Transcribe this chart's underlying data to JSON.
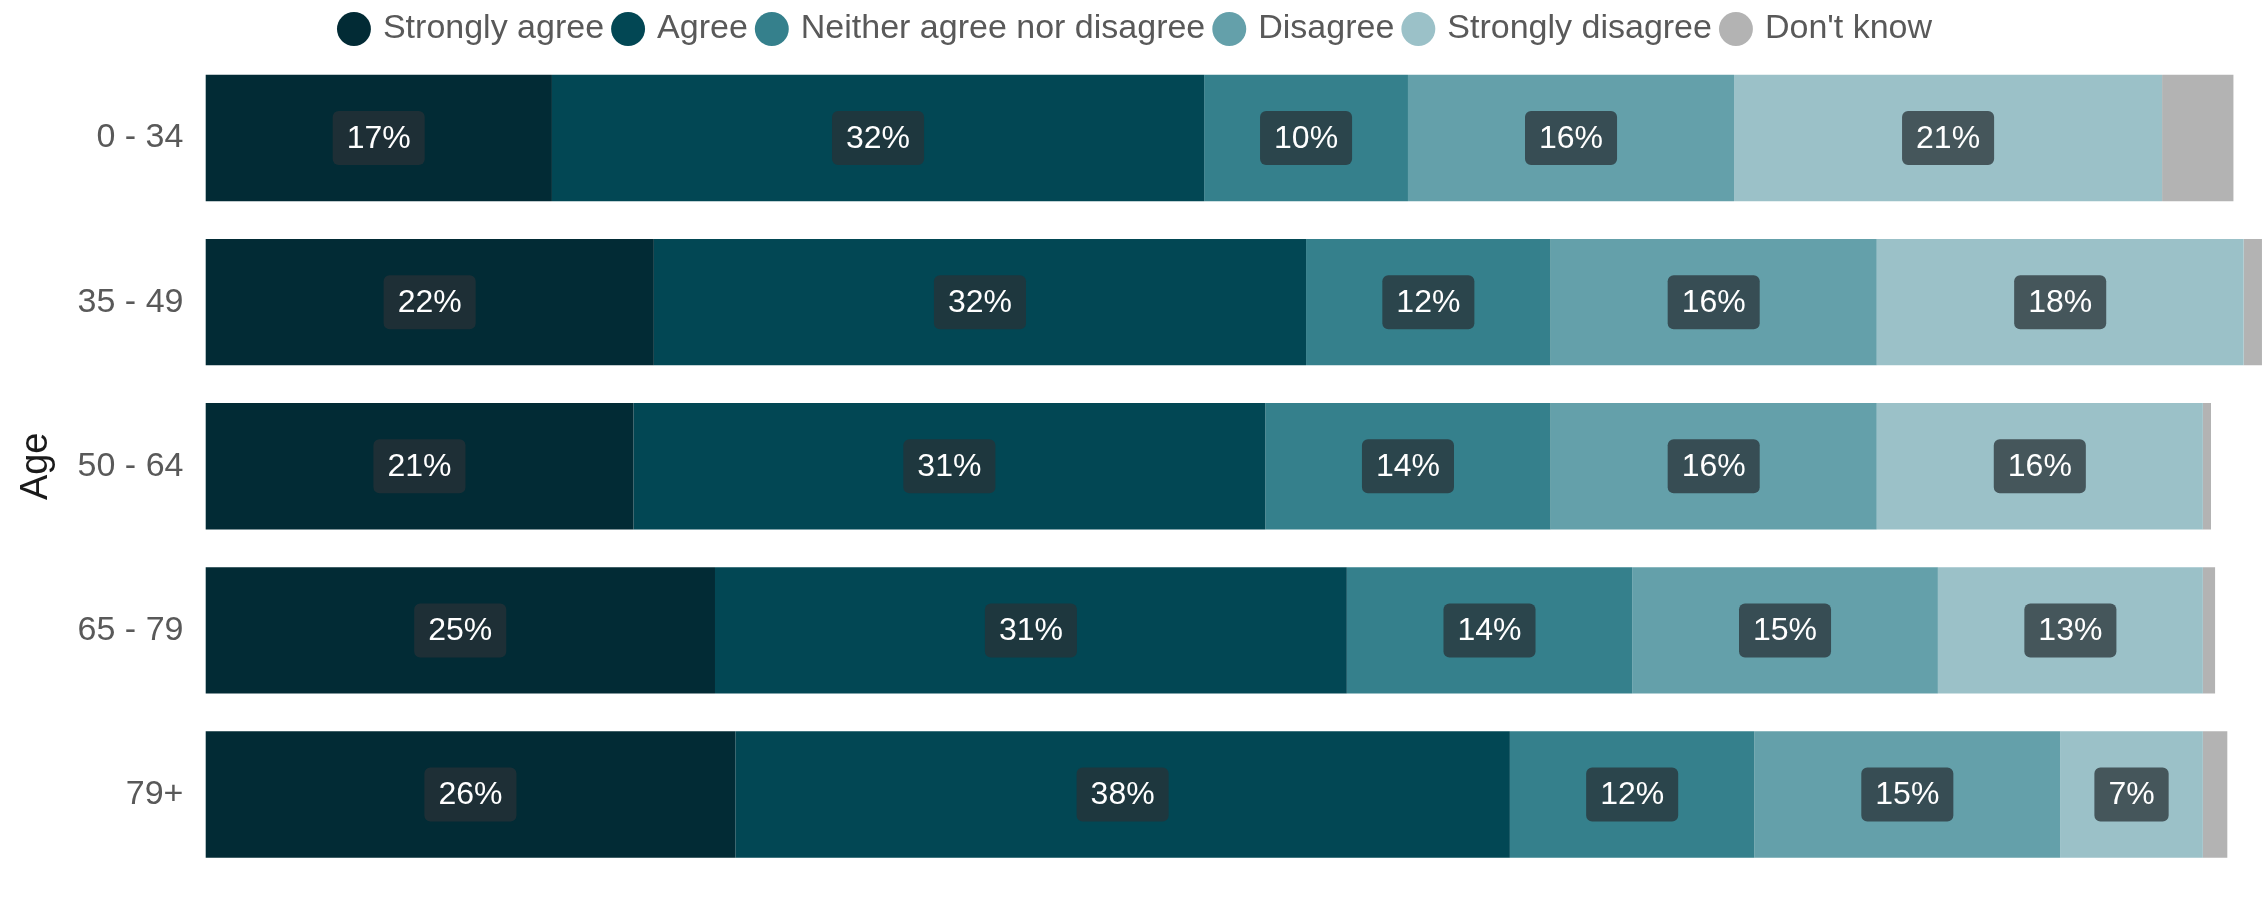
{
  "chart_data": {
    "type": "bar",
    "orientation": "horizontal",
    "stacked": true,
    "ylabel": "Age",
    "legend": "top",
    "tick_labels": "y",
    "xlim": [
      0,
      101
    ],
    "categories": [
      "0 - 34",
      "35 - 49",
      "50 - 64",
      "65 - 79",
      "79+"
    ],
    "series": [
      {
        "name": "Strongly agree",
        "color": "#022b35",
        "values": [
          17,
          22,
          21,
          25,
          26
        ],
        "value_labels": [
          "17%",
          "22%",
          "21%",
          "25%",
          "26%"
        ]
      },
      {
        "name": "Agree",
        "color": "#024754",
        "values": [
          32,
          32,
          31,
          31,
          38
        ],
        "value_labels": [
          "32%",
          "32%",
          "31%",
          "31%",
          "38%"
        ]
      },
      {
        "name": "Neither agree nor disagree",
        "color": "#35808c",
        "values": [
          10,
          12,
          14,
          14,
          12
        ],
        "value_labels": [
          "10%",
          "12%",
          "14%",
          "14%",
          "12%"
        ]
      },
      {
        "name": "Disagree",
        "color": "#64a0aa",
        "values": [
          16,
          16,
          16,
          15,
          15
        ],
        "value_labels": [
          "16%",
          "16%",
          "16%",
          "15%",
          "15%"
        ]
      },
      {
        "name": "Strongly disagree",
        "color": "#9bc1c8",
        "values": [
          21,
          18,
          16,
          13,
          7
        ],
        "value_labels": [
          "21%",
          "18%",
          "16%",
          "13%",
          "7%"
        ]
      },
      {
        "name": "Don't know",
        "color": "#b3b3b3",
        "values": [
          3.5,
          0.9,
          0.4,
          0.6,
          1.2
        ],
        "value_labels": [
          null,
          null,
          null,
          null,
          null
        ]
      }
    ]
  }
}
